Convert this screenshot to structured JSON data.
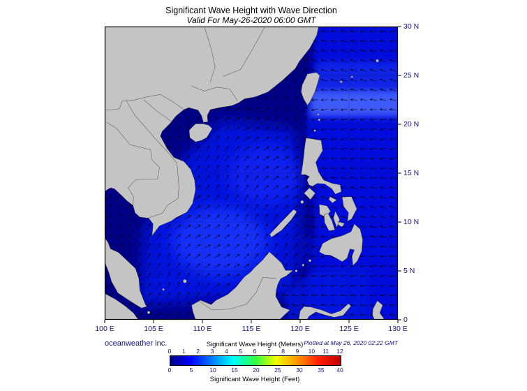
{
  "title": "Significant Wave Height with Wave Direction",
  "subtitle": "Valid For May-26-2020 06:00 GMT",
  "map": {
    "lon_ticks": [
      "100 E",
      "105 E",
      "110 E",
      "115 E",
      "120 E",
      "125 E",
      "130 E"
    ],
    "lat_ticks": [
      "30 N",
      "25 N",
      "20 N",
      "15 N",
      "10 N",
      "5 N",
      "0"
    ],
    "credit": "oceanweather inc.",
    "plotted": "Plotted at May 26, 2020 02:22 GMT"
  },
  "legend": {
    "meters_title": "Significant Wave Height (Meters)",
    "feet_title": "Significant Wave Height (Feet)",
    "meters_ticks": [
      "0",
      "1",
      "2",
      "3",
      "4",
      "5",
      "6",
      "7",
      "8",
      "9",
      "10",
      "11",
      "12"
    ],
    "feet_ticks": [
      "0",
      "5",
      "10",
      "15",
      "20",
      "25",
      "30",
      "35",
      "40"
    ]
  },
  "colors": {
    "land": "#c4c4c4",
    "coast": "#3a3a3a",
    "border_line": "#5a5a5a",
    "sea_base": "#000087",
    "sea_mid": "#0012e6",
    "sea_bright": "#1c38ff",
    "sea_bright2": "#1228f5",
    "pacific": "#000fe0",
    "band_east_of_taiwan": "#4868ff",
    "band_north": "#1e38f0",
    "celebes": "#0014e0",
    "sulu": "#0008c8",
    "arrow": "#000000",
    "label_text": "#14147e",
    "jet_scale": [
      "#000083",
      "#0000ff",
      "#0080ff",
      "#00ffff",
      "#30ff40",
      "#f0ff00",
      "#ff9000",
      "#ff2000",
      "#c00000"
    ]
  },
  "chart_data": {
    "type": "heatmap",
    "variable": "Significant Wave Height",
    "overlay": "wave direction arrows",
    "valid_time": "May-26-2020 06:00 GMT",
    "plotted_time": "May 26, 2020 02:22 GMT",
    "colormap": "jet",
    "scale_meters": [
      0,
      1,
      2,
      3,
      4,
      5,
      6,
      7,
      8,
      9,
      10,
      11,
      12
    ],
    "scale_feet": [
      0,
      5,
      10,
      15,
      20,
      25,
      30,
      35,
      40
    ],
    "lon_range_deg_east": [
      100,
      130
    ],
    "lat_range_deg_north": [
      0,
      30
    ],
    "approx_values_m": {
      "coastal_gulfs": "0-1",
      "central_south_china_sea": "1-2",
      "philippine_sea": "1-2",
      "band_east_of_taiwan_21N_24N": "2-2.5"
    }
  }
}
